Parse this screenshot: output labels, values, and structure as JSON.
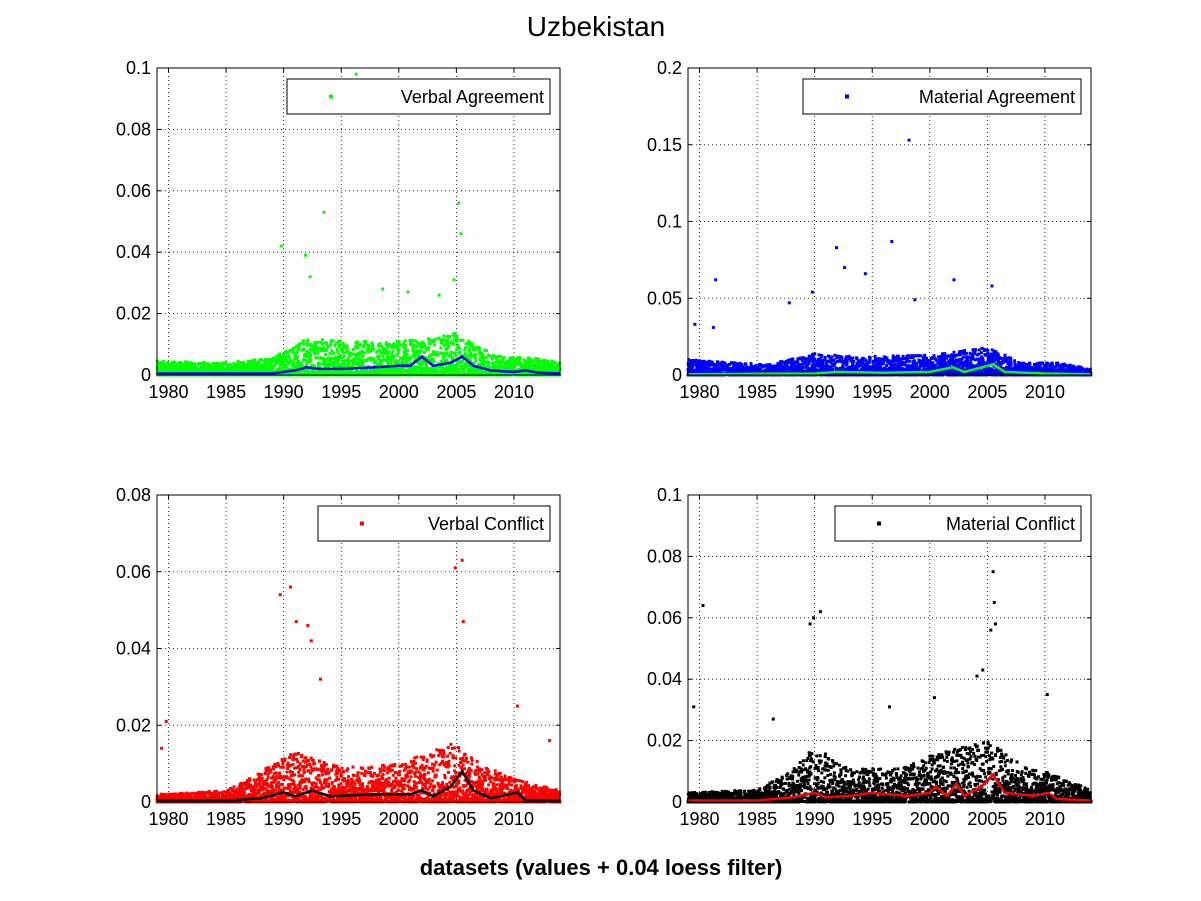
{
  "figure": {
    "title": "Uzbekistan",
    "xlabel": "datasets (values + 0.04 loess filter)"
  },
  "chart_data": [
    {
      "type": "scatter",
      "legend": "Verbal Agreement",
      "legend_location": "top-right",
      "grid": true,
      "xlim": [
        1979,
        2014
      ],
      "ylim": [
        0,
        0.1
      ],
      "xticks": [
        "1980",
        "1985",
        "1990",
        "1995",
        "2000",
        "2005",
        "2010"
      ],
      "yticks": [
        "0",
        "0.02",
        "0.04",
        "0.06",
        "0.08",
        "0.1"
      ],
      "point_color": "#00ff00",
      "smooth_color": "#0000ff",
      "outliers": [
        [
          1996.3,
          0.098
        ],
        [
          1993.5,
          0.053
        ],
        [
          2005.2,
          0.056
        ],
        [
          2005.4,
          0.046
        ],
        [
          1989.8,
          0.042
        ],
        [
          1991.9,
          0.039
        ],
        [
          1992.3,
          0.032
        ],
        [
          2003.5,
          0.026
        ],
        [
          2004.8,
          0.031
        ],
        [
          1998.6,
          0.028
        ],
        [
          2000.8,
          0.027
        ]
      ],
      "smooth": [
        [
          1979,
          0.0005
        ],
        [
          1985,
          0.0005
        ],
        [
          1989,
          0.0005
        ],
        [
          1990,
          0.001
        ],
        [
          1991,
          0.0015
        ],
        [
          1992,
          0.0025
        ],
        [
          1993,
          0.002
        ],
        [
          1995,
          0.002
        ],
        [
          1998,
          0.0025
        ],
        [
          2000,
          0.003
        ],
        [
          2001,
          0.003
        ],
        [
          2002,
          0.006
        ],
        [
          2003,
          0.003
        ],
        [
          2004.5,
          0.004
        ],
        [
          2005.5,
          0.006
        ],
        [
          2006.5,
          0.003
        ],
        [
          2008,
          0.0015
        ],
        [
          2010,
          0.001
        ],
        [
          2011,
          0.0015
        ],
        [
          2012,
          0.0008
        ],
        [
          2014,
          0.0005
        ]
      ],
      "density": [
        [
          1979,
          0.0045
        ],
        [
          1985,
          0.004
        ],
        [
          1989,
          0.0055
        ],
        [
          1992,
          0.012
        ],
        [
          1995,
          0.011
        ],
        [
          2000,
          0.011
        ],
        [
          2003,
          0.012
        ],
        [
          2005,
          0.014
        ],
        [
          2007,
          0.009
        ],
        [
          2009,
          0.006
        ],
        [
          2011,
          0.006
        ],
        [
          2014,
          0.004
        ]
      ]
    },
    {
      "type": "scatter",
      "legend": "Material Agreement",
      "legend_location": "top-right",
      "grid": true,
      "xlim": [
        1979,
        2014
      ],
      "ylim": [
        0,
        0.2
      ],
      "xticks": [
        "1980",
        "1985",
        "1990",
        "1995",
        "2000",
        "2005",
        "2010"
      ],
      "yticks": [
        "0",
        "0.05",
        "0.1",
        "0.15",
        "0.2"
      ],
      "point_color": "#0000ff",
      "smooth_color": "#00ff00",
      "outliers": [
        [
          1998.2,
          0.153
        ],
        [
          1996.7,
          0.087
        ],
        [
          1991.9,
          0.083
        ],
        [
          1992.6,
          0.07
        ],
        [
          1994.4,
          0.066
        ],
        [
          1981.4,
          0.062
        ],
        [
          2002.1,
          0.062
        ],
        [
          1989.8,
          0.054
        ],
        [
          1998.7,
          0.049
        ],
        [
          2005.4,
          0.058
        ],
        [
          1987.8,
          0.047
        ],
        [
          1979.6,
          0.033
        ],
        [
          1981.2,
          0.031
        ]
      ],
      "smooth": [
        [
          1979,
          0.0005
        ],
        [
          1990,
          0.001
        ],
        [
          1992,
          0.002
        ],
        [
          1996,
          0.0015
        ],
        [
          2000,
          0.002
        ],
        [
          2002,
          0.005
        ],
        [
          2003,
          0.002
        ],
        [
          2005.5,
          0.007
        ],
        [
          2006.5,
          0.002
        ],
        [
          2010,
          0.001
        ],
        [
          2014,
          0.0005
        ]
      ],
      "density": [
        [
          1979,
          0.01
        ],
        [
          1983,
          0.008
        ],
        [
          1986,
          0.007
        ],
        [
          1990,
          0.014
        ],
        [
          1994,
          0.012
        ],
        [
          2000,
          0.013
        ],
        [
          2005,
          0.018
        ],
        [
          2008,
          0.008
        ],
        [
          2011,
          0.008
        ],
        [
          2014,
          0.004
        ]
      ]
    },
    {
      "type": "scatter",
      "legend": "Verbal Conflict",
      "legend_location": "top-right",
      "grid": true,
      "xlim": [
        1979,
        2014
      ],
      "ylim": [
        0,
        0.08
      ],
      "xticks": [
        "1980",
        "1985",
        "1990",
        "1995",
        "2000",
        "2005",
        "2010"
      ],
      "yticks": [
        "0",
        "0.02",
        "0.04",
        "0.06",
        "0.08"
      ],
      "point_color": "#ff0000",
      "smooth_color": "#000000",
      "outliers": [
        [
          2005.5,
          0.063
        ],
        [
          2004.9,
          0.061
        ],
        [
          1990.6,
          0.056
        ],
        [
          1989.7,
          0.054
        ],
        [
          1991.1,
          0.047
        ],
        [
          1992.1,
          0.046
        ],
        [
          1992.4,
          0.042
        ],
        [
          2005.6,
          0.047
        ],
        [
          1993.2,
          0.032
        ],
        [
          2010.3,
          0.025
        ],
        [
          1979.8,
          0.021
        ],
        [
          2013.1,
          0.016
        ],
        [
          1979.4,
          0.014
        ]
      ],
      "smooth": [
        [
          1979,
          0.0003
        ],
        [
          1985,
          0.0003
        ],
        [
          1988,
          0.001
        ],
        [
          1990,
          0.0025
        ],
        [
          1991,
          0.0015
        ],
        [
          1992.5,
          0.003
        ],
        [
          1994,
          0.0015
        ],
        [
          1998,
          0.002
        ],
        [
          2001,
          0.002
        ],
        [
          2002,
          0.003
        ],
        [
          2003,
          0.0015
        ],
        [
          2004.5,
          0.004
        ],
        [
          2005.5,
          0.008
        ],
        [
          2006.5,
          0.003
        ],
        [
          2008,
          0.001
        ],
        [
          2010.3,
          0.0025
        ],
        [
          2011,
          0.0005
        ],
        [
          2014,
          0.0003
        ]
      ],
      "density": [
        [
          1979,
          0.002
        ],
        [
          1985,
          0.003
        ],
        [
          1988,
          0.008
        ],
        [
          1991,
          0.013
        ],
        [
          1995,
          0.009
        ],
        [
          2000,
          0.01
        ],
        [
          2005,
          0.016
        ],
        [
          2007,
          0.01
        ],
        [
          2010,
          0.006
        ],
        [
          2014,
          0.003
        ]
      ]
    },
    {
      "type": "scatter",
      "legend": "Material Conflict",
      "legend_location": "top-right",
      "grid": true,
      "xlim": [
        1979,
        2014
      ],
      "ylim": [
        0,
        0.1
      ],
      "xticks": [
        "1980",
        "1985",
        "1990",
        "1995",
        "2000",
        "2005",
        "2010"
      ],
      "yticks": [
        "0",
        "0.02",
        "0.04",
        "0.06",
        "0.08",
        "0.1"
      ],
      "point_color": "#000000",
      "smooth_color": "#ff0000",
      "outliers": [
        [
          2005.5,
          0.075
        ],
        [
          2005.6,
          0.065
        ],
        [
          1980.3,
          0.064
        ],
        [
          1990.5,
          0.062
        ],
        [
          1989.6,
          0.058
        ],
        [
          1989.9,
          0.06
        ],
        [
          2005.7,
          0.058
        ],
        [
          2005.3,
          0.056
        ],
        [
          2010.2,
          0.035
        ],
        [
          2000.4,
          0.034
        ],
        [
          1979.5,
          0.031
        ],
        [
          1986.4,
          0.027
        ],
        [
          1996.5,
          0.031
        ],
        [
          2004.1,
          0.041
        ],
        [
          2004.6,
          0.043
        ]
      ],
      "smooth": [
        [
          1979,
          0.0005
        ],
        [
          1985,
          0.0005
        ],
        [
          1988,
          0.0015
        ],
        [
          1990,
          0.003
        ],
        [
          1991,
          0.0015
        ],
        [
          1993,
          0.002
        ],
        [
          1995,
          0.003
        ],
        [
          1998,
          0.002
        ],
        [
          2000,
          0.003
        ],
        [
          2000.5,
          0.005
        ],
        [
          2001.5,
          0.002
        ],
        [
          2002.3,
          0.006
        ],
        [
          2003,
          0.002
        ],
        [
          2004.5,
          0.005
        ],
        [
          2005.5,
          0.009
        ],
        [
          2006.5,
          0.003
        ],
        [
          2009,
          0.002
        ],
        [
          2010.3,
          0.003
        ],
        [
          2011,
          0.001
        ],
        [
          2014,
          0.0005
        ]
      ],
      "density": [
        [
          1979,
          0.003
        ],
        [
          1985,
          0.004
        ],
        [
          1988,
          0.01
        ],
        [
          1990,
          0.018
        ],
        [
          1993,
          0.011
        ],
        [
          1997,
          0.011
        ],
        [
          2000,
          0.015
        ],
        [
          2005,
          0.02
        ],
        [
          2008,
          0.012
        ],
        [
          2010,
          0.01
        ],
        [
          2014,
          0.004
        ]
      ]
    }
  ]
}
